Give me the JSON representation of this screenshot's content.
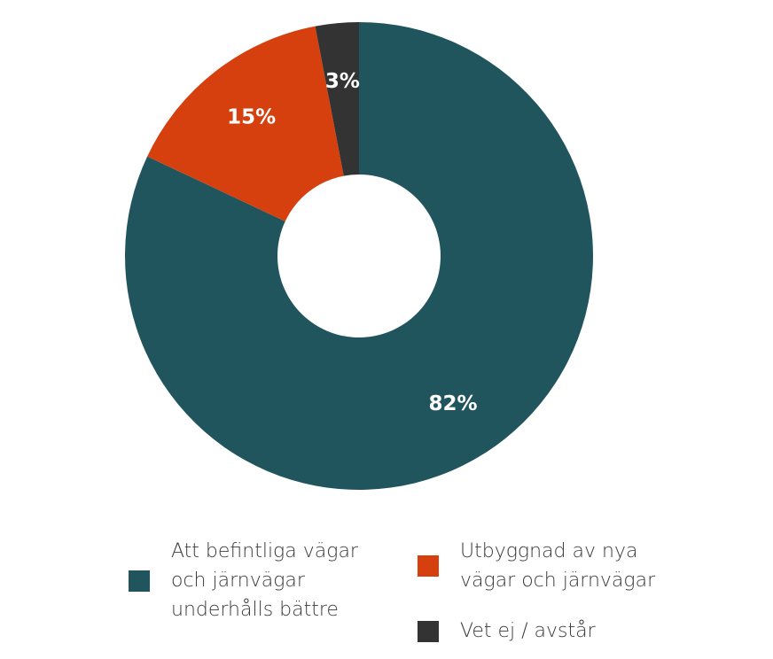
{
  "chart_data": {
    "type": "pie",
    "donut": true,
    "categories": [
      "Att befintliga vägar\noch järnvägar\nunderhålls bättre",
      "Utbyggnad av nya\nvägar och järnvägar",
      "Vet ej / avstår"
    ],
    "values": [
      82,
      15,
      3
    ],
    "labels": [
      "82%",
      "15%",
      "3%"
    ],
    "colors": [
      "#21555e",
      "#d6400f",
      "#333333"
    ],
    "legend_position": "bottom"
  }
}
